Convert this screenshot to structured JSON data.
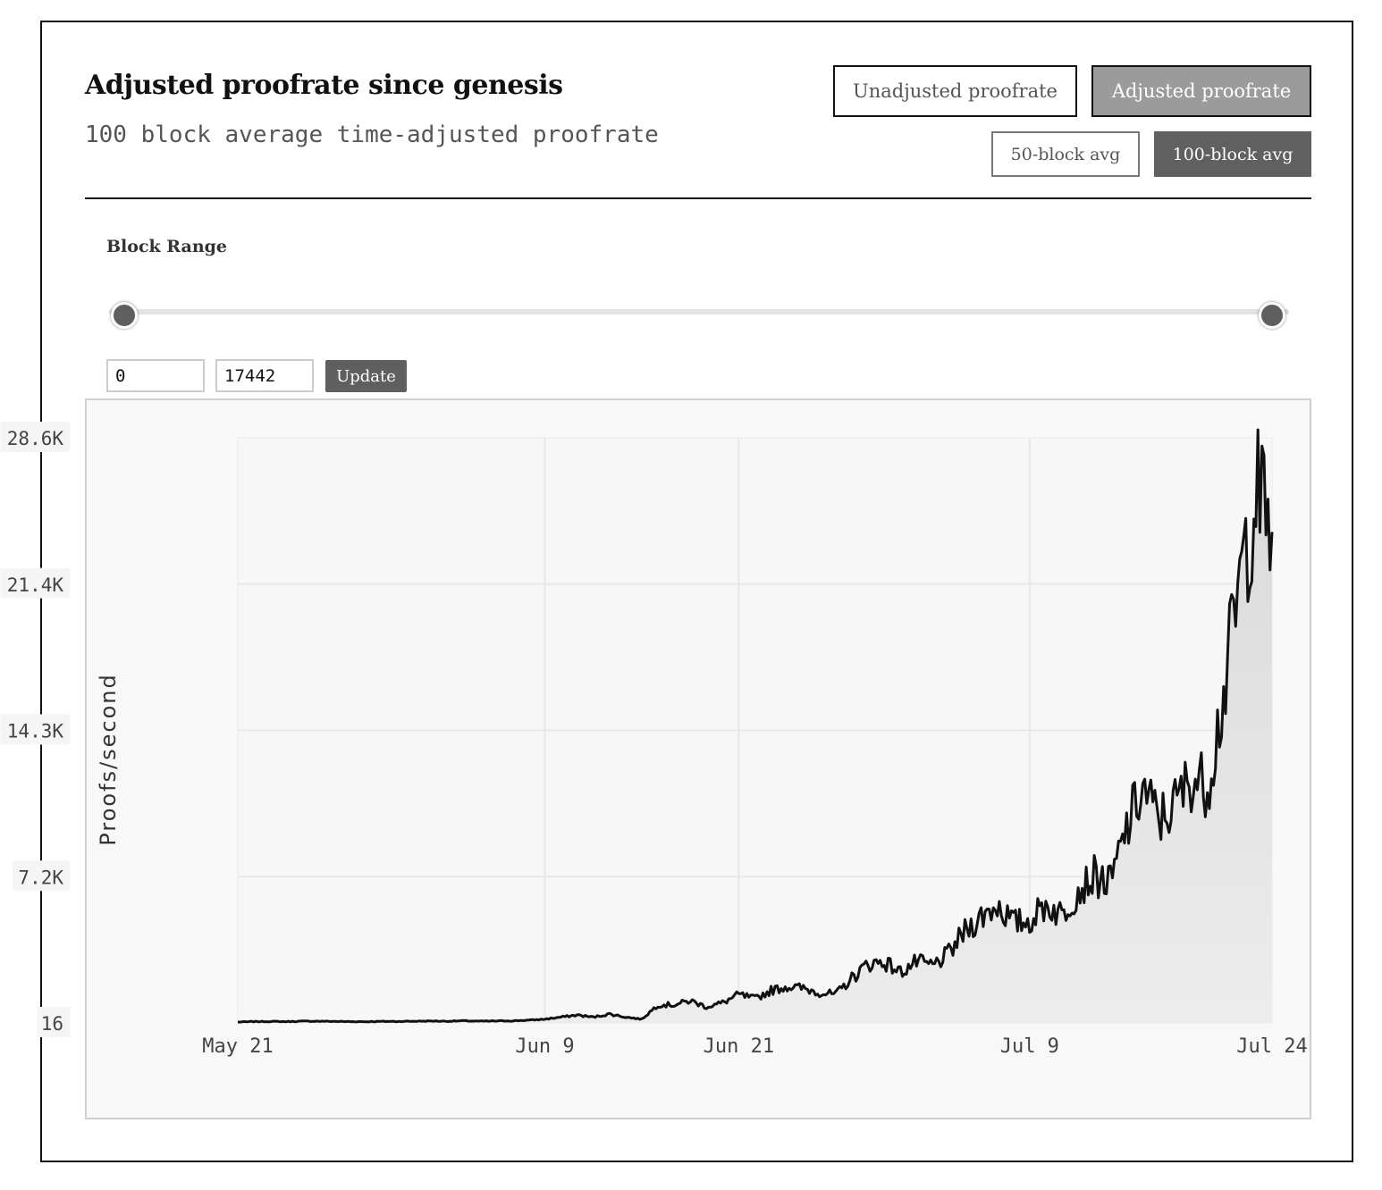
{
  "header": {
    "title": "Adjusted proofrate since genesis",
    "subtitle": "100 block average time-adjusted proofrate"
  },
  "toggles": {
    "unadjusted_label": "Unadjusted proofrate",
    "adjusted_label": "Adjusted proofrate",
    "avg50_label": "50-block avg",
    "avg100_label": "100-block avg",
    "selected_metric": "Adjusted proofrate",
    "selected_window": "100-block avg"
  },
  "range": {
    "label": "Block Range",
    "min_value": "0",
    "max_value": "17442",
    "update_label": "Update",
    "slider_start_fraction": 0.0,
    "slider_end_fraction": 1.0
  },
  "colors": {
    "line": "#111111",
    "area_top": "#d9d9d9",
    "area_bottom": "#ececec",
    "plot_bg": "#f7f7f7",
    "grid": "#e8e8e8"
  },
  "chart_data": {
    "type": "area",
    "title": "",
    "xlabel": "",
    "ylabel": "Proofs/second",
    "x_ticks": [
      "May 21",
      "Jun 9",
      "Jun 21",
      "Jul 9",
      "Jul 24"
    ],
    "y_ticks": [
      "16",
      "7.2K",
      "14.3K",
      "21.4K",
      "28.6K"
    ],
    "ylim": [
      16,
      28600
    ],
    "grid": true,
    "series": [
      {
        "x": [
          "May 21",
          "May 22",
          "May 23",
          "May 24",
          "May 25",
          "May 26",
          "May 27",
          "May 28",
          "May 29",
          "May 30",
          "May 31",
          "Jun 1",
          "Jun 2",
          "Jun 3",
          "Jun 4",
          "Jun 5",
          "Jun 6",
          "Jun 7",
          "Jun 8",
          "Jun 9",
          "Jun 10",
          "Jun 11",
          "Jun 12",
          "Jun 13",
          "Jun 14",
          "Jun 15",
          "Jun 16",
          "Jun 17",
          "Jun 18",
          "Jun 19",
          "Jun 20",
          "Jun 21",
          "Jun 22",
          "Jun 23",
          "Jun 24",
          "Jun 25",
          "Jun 26",
          "Jun 27",
          "Jun 28",
          "Jun 29",
          "Jun 30",
          "Jul 1",
          "Jul 2",
          "Jul 3",
          "Jul 4",
          "Jul 5",
          "Jul 6",
          "Jul 7",
          "Jul 8",
          "Jul 9",
          "Jul 10",
          "Jul 11",
          "Jul 12",
          "Jul 13",
          "Jul 14",
          "Jul 15",
          "Jul 16",
          "Jul 17",
          "Jul 18",
          "Jul 19",
          "Jul 20",
          "Jul 21",
          "Jul 22",
          "Jul 23",
          "Jul 24"
        ],
        "values": [
          60,
          80,
          90,
          80,
          100,
          100,
          90,
          80,
          80,
          90,
          90,
          100,
          110,
          100,
          120,
          100,
          110,
          120,
          150,
          200,
          300,
          400,
          300,
          450,
          300,
          200,
          900,
          900,
          1100,
          800,
          1000,
          1400,
          1200,
          1600,
          1800,
          1700,
          1500,
          1400,
          2200,
          2900,
          3000,
          2500,
          3000,
          2800,
          3400,
          4500,
          5200,
          5800,
          4900,
          5000,
          5800,
          5300,
          6500,
          7200,
          6800,
          9500,
          11500,
          9900,
          10700,
          12000,
          11600,
          16000,
          21500,
          26000,
          24000
        ]
      }
    ]
  }
}
